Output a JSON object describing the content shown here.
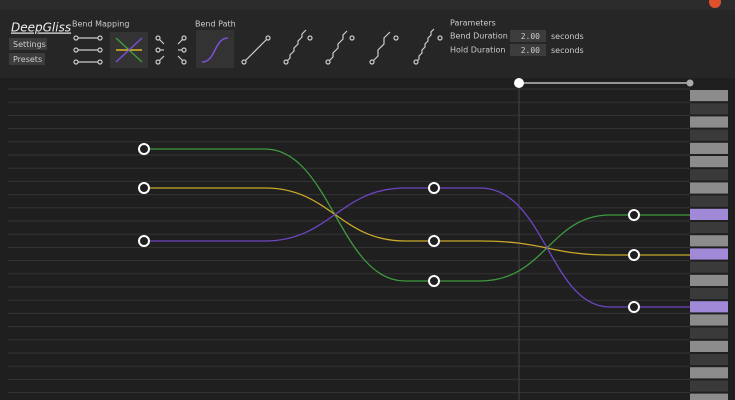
{
  "app": {
    "title": "DeepGliss",
    "buttons": [
      "Settings",
      "Presets"
    ]
  },
  "toolbar": {
    "bend_mapping": "Bend Mapping",
    "bend_path": "Bend Path"
  },
  "parameters": {
    "title": "Parameters",
    "rows": [
      {
        "label": "Bend Duration",
        "value": "2.00",
        "unit": "seconds"
      },
      {
        "label": "Hold Duration",
        "value": "2.00",
        "unit": "seconds"
      }
    ]
  }
}
